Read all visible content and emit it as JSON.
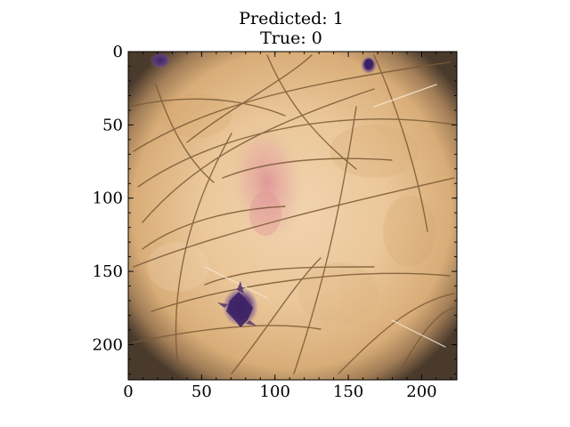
{
  "title": {
    "line1": "Predicted: 1",
    "line2": "True: 0"
  },
  "axes": {
    "xlim": [
      0,
      224
    ],
    "ylim": [
      224,
      0
    ],
    "x_ticks": [
      0,
      50,
      100,
      150,
      200
    ],
    "y_ticks": [
      0,
      50,
      100,
      150,
      200
    ],
    "minor_step": 10
  },
  "image": {
    "subject": "dermoscopy image of skin with hairs and purple ink marks",
    "skin_color": "#e9c596",
    "vignette_color": "#4a3a2c",
    "lesion_color": "#df9a98",
    "ink_color": "#4a2c70",
    "hair_color": "#7a5a36"
  }
}
